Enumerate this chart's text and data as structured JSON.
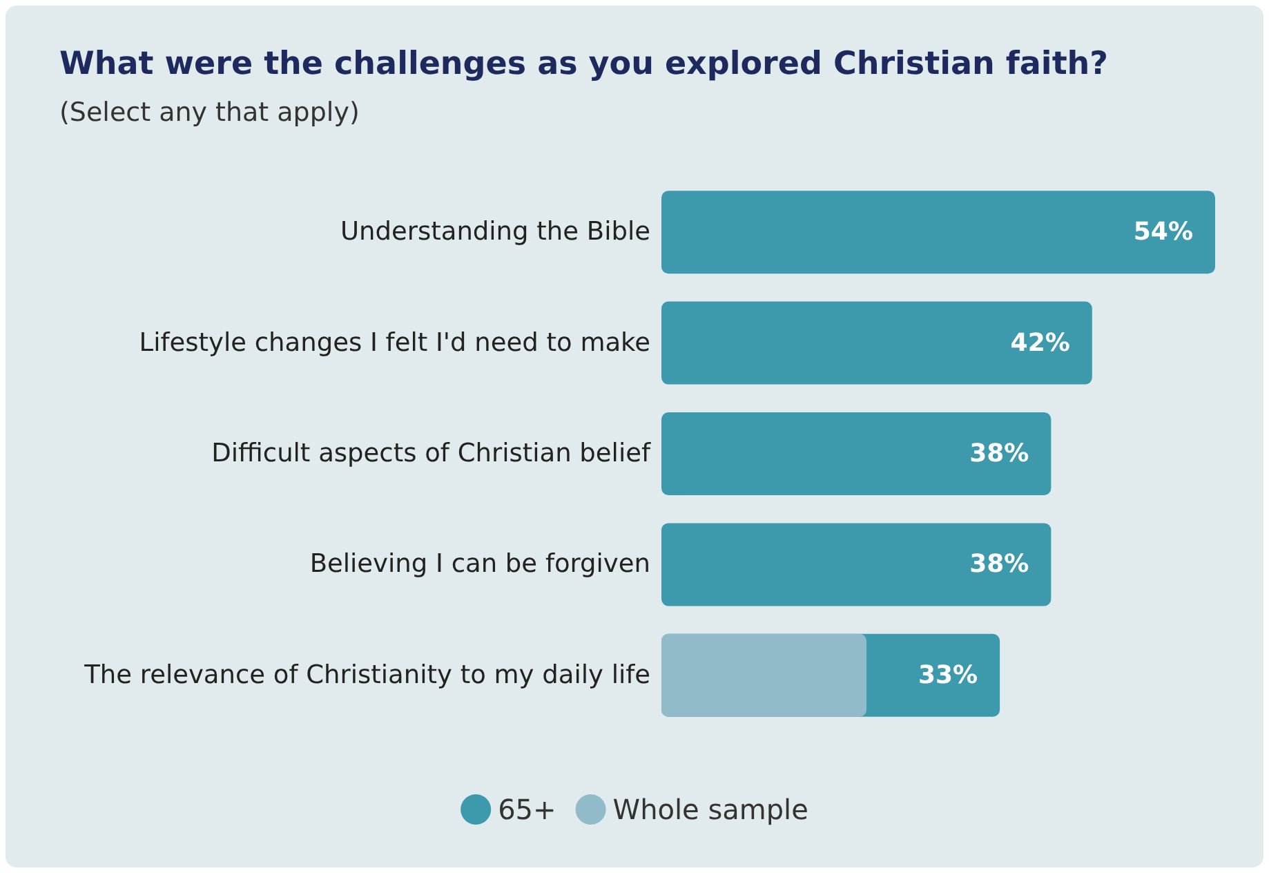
{
  "chart_data": {
    "type": "bar",
    "orientation": "horizontal",
    "title": "What were the challenges as you explored Christian faith?",
    "subtitle": "(Select any that apply)",
    "categories": [
      "Understanding the Bible",
      "Lifestyle changes I felt I'd need to make",
      "Difficult aspects of Christian belief",
      "Believing I can be forgiven",
      "The relevance of Christianity to my daily life"
    ],
    "series": [
      {
        "name": "65+",
        "color": "#3d9aad",
        "values": [
          54,
          42,
          38,
          38,
          33
        ],
        "value_labels": [
          "54%",
          "42%",
          "38%",
          "38%",
          "33%"
        ]
      },
      {
        "name": "Whole sample",
        "color": "#91bbc9",
        "values": [
          null,
          null,
          null,
          null,
          20
        ]
      }
    ],
    "legend": "bottom"
  }
}
